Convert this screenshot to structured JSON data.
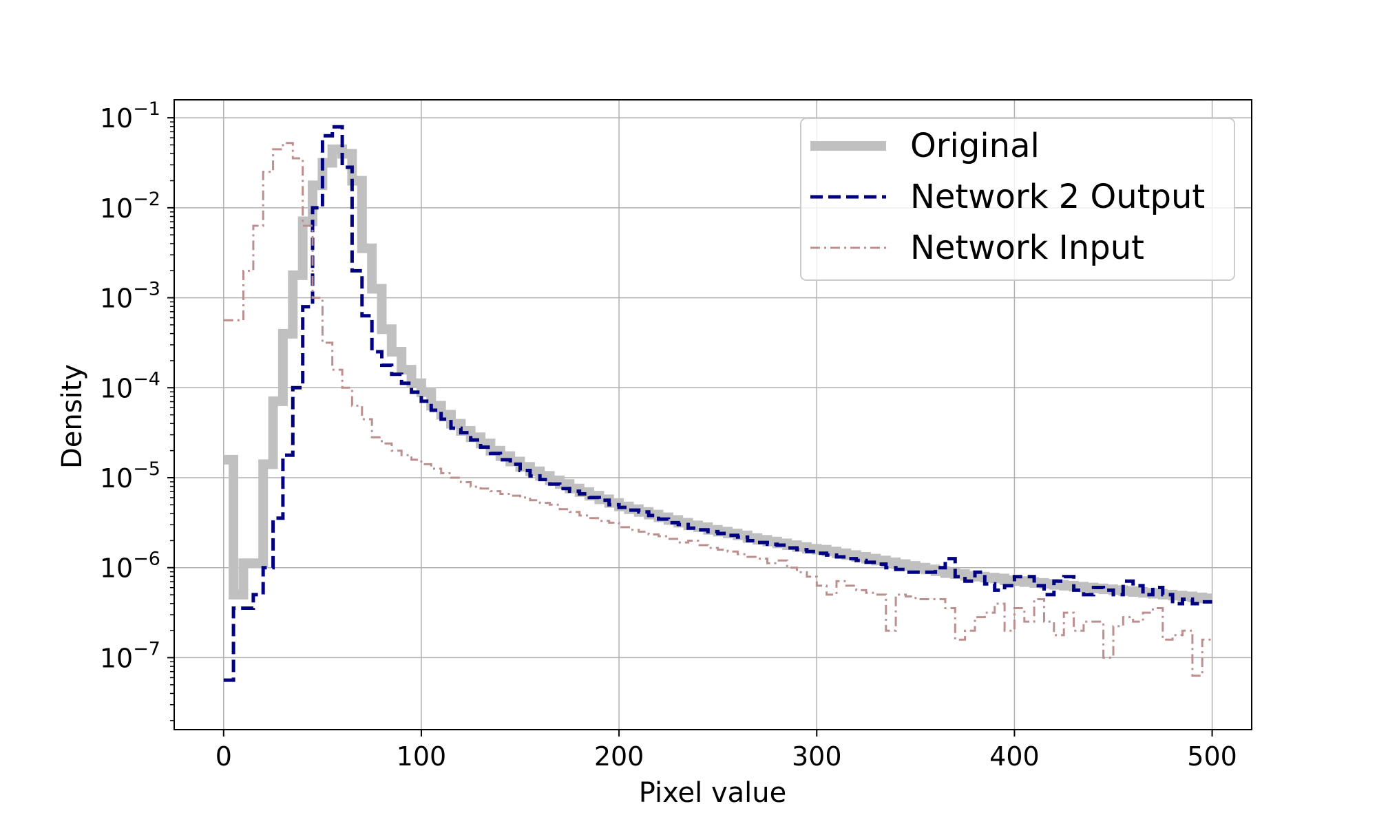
{
  "chart_data": {
    "type": "line",
    "drawstyle": "steps",
    "xlabel": "Pixel value",
    "ylabel": "Density",
    "xlim": [
      -25,
      520
    ],
    "ylim_exponent": [
      -7.8,
      -0.8
    ],
    "yscale": "log",
    "grid": true,
    "legend_position": "top-right",
    "x_ticks": [
      0,
      100,
      200,
      300,
      400,
      500
    ],
    "y_ticks": [
      {
        "base": "10",
        "exp": "−7",
        "value": -7
      },
      {
        "base": "10",
        "exp": "−6",
        "value": -6
      },
      {
        "base": "10",
        "exp": "−5",
        "value": -5
      },
      {
        "base": "10",
        "exp": "−4",
        "value": -4
      },
      {
        "base": "10",
        "exp": "−3",
        "value": -3
      },
      {
        "base": "10",
        "exp": "−2",
        "value": -2
      },
      {
        "base": "10",
        "exp": "−1",
        "value": -1
      }
    ],
    "bin_width": 5,
    "series": [
      {
        "name": "Original",
        "color": "#c0c0c0",
        "style": "solid",
        "start": 0,
        "log10_density": [
          -4.8,
          -6.3,
          -5.95,
          -5.95,
          -4.85,
          -4.15,
          -3.4,
          -2.75,
          -2.15,
          -1.75,
          -1.5,
          -1.35,
          -1.4,
          -1.7,
          -2.45,
          -2.9,
          -3.35,
          -3.6,
          -3.8,
          -3.95,
          -4.05,
          -4.2,
          -4.3,
          -4.4,
          -4.48,
          -4.55,
          -4.62,
          -4.7,
          -4.76,
          -4.82,
          -4.88,
          -4.93,
          -4.98,
          -5.03,
          -5.07,
          -5.12,
          -5.16,
          -5.2,
          -5.24,
          -5.28,
          -5.32,
          -5.35,
          -5.38,
          -5.41,
          -5.44,
          -5.47,
          -5.5,
          -5.53,
          -5.55,
          -5.58,
          -5.6,
          -5.62,
          -5.64,
          -5.67,
          -5.69,
          -5.71,
          -5.73,
          -5.75,
          -5.77,
          -5.79,
          -5.8,
          -5.82,
          -5.84,
          -5.86,
          -5.88,
          -5.9,
          -5.92,
          -5.94,
          -5.96,
          -5.98,
          -6.0,
          -6.02,
          -6.04,
          -6.06,
          -6.07,
          -6.09,
          -6.1,
          -6.11,
          -6.12,
          -6.14,
          -6.15,
          -6.16,
          -6.17,
          -6.18,
          -6.19,
          -6.2,
          -6.21,
          -6.22,
          -6.23,
          -6.24,
          -6.25,
          -6.26,
          -6.27,
          -6.28,
          -6.29,
          -6.3,
          -6.31,
          -6.32,
          -6.33,
          -6.34
        ]
      },
      {
        "name": "Network 2 Output",
        "color": "#000080",
        "style": "dashed",
        "start": 0,
        "log10_density": [
          -7.25,
          -6.45,
          -6.45,
          -6.3,
          -6.0,
          -5.45,
          -4.75,
          -4.0,
          -3.1,
          -2.0,
          -1.2,
          -1.1,
          -1.55,
          -2.7,
          -3.2,
          -3.6,
          -3.75,
          -3.85,
          -3.95,
          -4.05,
          -4.15,
          -4.25,
          -4.35,
          -4.45,
          -4.5,
          -4.58,
          -4.66,
          -4.73,
          -4.8,
          -4.85,
          -4.92,
          -4.98,
          -5.02,
          -5.07,
          -5.12,
          -5.15,
          -5.18,
          -5.22,
          -5.25,
          -5.3,
          -5.33,
          -5.36,
          -5.38,
          -5.42,
          -5.46,
          -5.5,
          -5.52,
          -5.56,
          -5.58,
          -5.6,
          -5.62,
          -5.64,
          -5.66,
          -5.7,
          -5.72,
          -5.74,
          -5.75,
          -5.78,
          -5.8,
          -5.82,
          -5.84,
          -5.86,
          -5.88,
          -5.9,
          -5.92,
          -5.94,
          -5.96,
          -6.0,
          -6.02,
          -6.05,
          -6.05,
          -6.05,
          -6.0,
          -5.9,
          -6.1,
          -6.15,
          -6.05,
          -6.18,
          -6.25,
          -6.2,
          -6.1,
          -6.1,
          -6.2,
          -6.3,
          -6.15,
          -6.1,
          -6.25,
          -6.3,
          -6.22,
          -6.25,
          -6.3,
          -6.15,
          -6.2,
          -6.3,
          -6.22,
          -6.3,
          -6.4,
          -6.35,
          -6.4,
          -6.38
        ]
      },
      {
        "name": "Network Input",
        "color": "#bc8f8f",
        "style": "dashdot",
        "start": 0,
        "log10_density": [
          -3.25,
          -3.25,
          -2.7,
          -2.2,
          -1.6,
          -1.35,
          -1.28,
          -1.45,
          -2.2,
          -3.0,
          -3.5,
          -3.8,
          -4.0,
          -4.2,
          -4.35,
          -4.55,
          -4.62,
          -4.7,
          -4.75,
          -4.8,
          -4.85,
          -4.9,
          -4.95,
          -5.0,
          -5.05,
          -5.1,
          -5.12,
          -5.15,
          -5.18,
          -5.2,
          -5.22,
          -5.25,
          -5.28,
          -5.3,
          -5.35,
          -5.38,
          -5.42,
          -5.45,
          -5.48,
          -5.5,
          -5.55,
          -5.58,
          -5.6,
          -5.63,
          -5.65,
          -5.68,
          -5.72,
          -5.7,
          -5.75,
          -5.78,
          -5.8,
          -5.82,
          -5.85,
          -5.88,
          -5.9,
          -5.95,
          -5.92,
          -6.0,
          -6.05,
          -6.1,
          -6.2,
          -6.3,
          -6.15,
          -6.2,
          -6.25,
          -6.28,
          -6.3,
          -6.7,
          -6.3,
          -6.32,
          -6.35,
          -6.35,
          -6.35,
          -6.45,
          -6.8,
          -6.7,
          -6.55,
          -6.5,
          -6.4,
          -6.7,
          -6.45,
          -6.6,
          -6.35,
          -6.6,
          -6.75,
          -6.5,
          -6.7,
          -6.6,
          -6.6,
          -7.0,
          -6.65,
          -6.55,
          -6.6,
          -6.5,
          -6.45,
          -6.8,
          -6.75,
          -6.7,
          -7.2,
          -6.8
        ]
      }
    ]
  }
}
